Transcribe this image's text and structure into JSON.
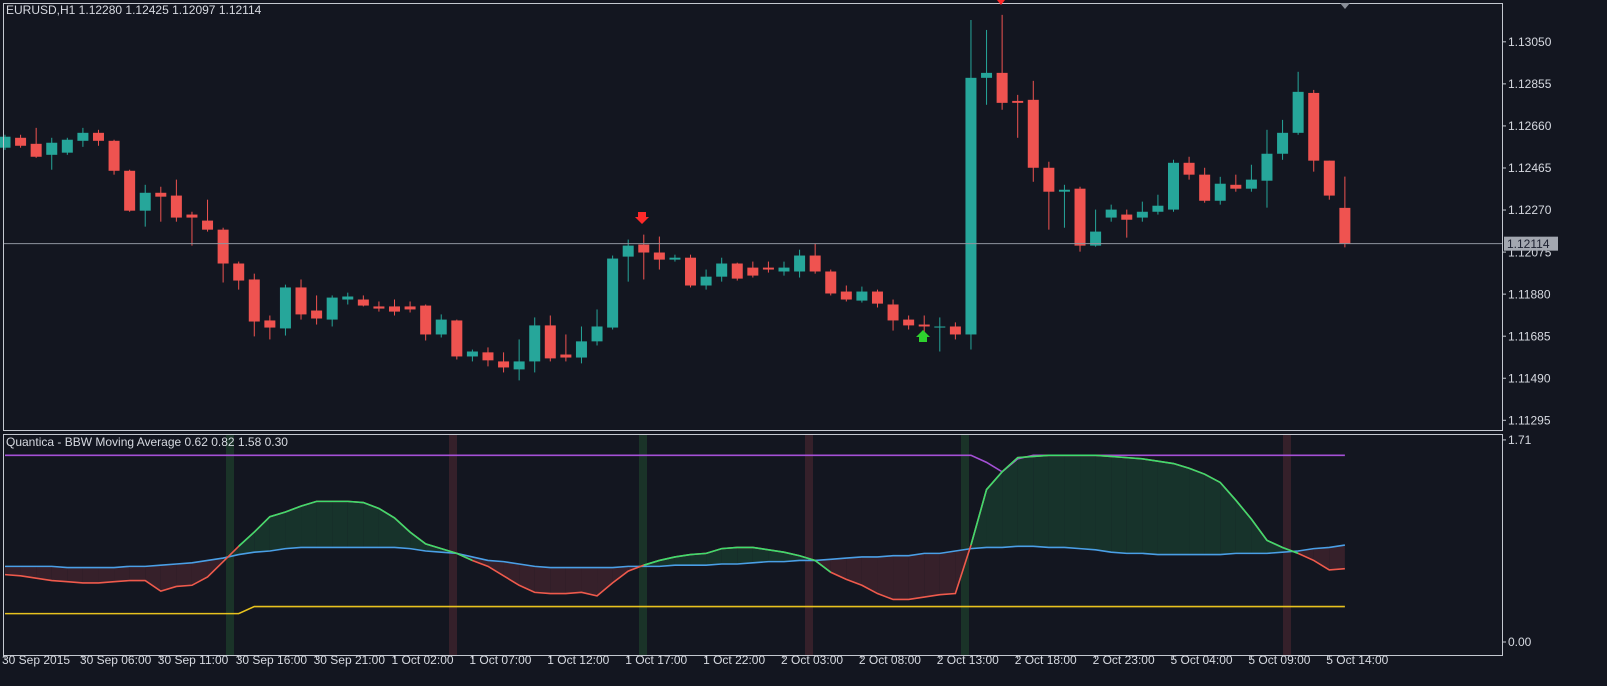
{
  "chart_data": [
    {
      "type": "candlestick",
      "title": "EURUSD,H1  1.12280 1.12425 1.12097 1.12114",
      "categories": [
        "30 Sep 2015",
        null,
        null,
        null,
        null,
        "30 Sep 06:00",
        null,
        null,
        null,
        null,
        "30 Sep 11:00",
        null,
        null,
        null,
        null,
        "30 Sep 16:00",
        null,
        null,
        null,
        null,
        "30 Sep 21:00",
        null,
        null,
        null,
        null,
        "1 Oct 02:00",
        null,
        null,
        null,
        null,
        "1 Oct 07:00",
        null,
        null,
        null,
        null,
        "1 Oct 12:00",
        null,
        null,
        null,
        null,
        "1 Oct 17:00",
        null,
        null,
        null,
        null,
        "1 Oct 22:00",
        null,
        null,
        null,
        null,
        "2 Oct 03:00",
        null,
        null,
        null,
        null,
        "2 Oct 08:00",
        null,
        null,
        null,
        null,
        "2 Oct 13:00",
        null,
        null,
        null,
        null,
        "2 Oct 18:00",
        null,
        null,
        null,
        null,
        "2 Oct 23:00",
        null,
        null,
        null,
        null,
        "5 Oct 04:00",
        null,
        null,
        null,
        null,
        "5 Oct 09:00",
        null,
        null,
        null,
        null,
        "5 Oct 14:00",
        null
      ],
      "open": [
        1.12559,
        1.12605,
        1.12577,
        1.12526,
        1.12536,
        1.12591,
        1.12628,
        1.12591,
        1.12452,
        1.12267,
        1.1235,
        1.12337,
        1.12249,
        1.12221,
        1.12179,
        1.12022,
        1.11948,
        1.11758,
        1.11721,
        1.11911,
        1.11804,
        1.11762,
        1.11855,
        1.11855,
        1.11823,
        1.11823,
        1.11823,
        1.11827,
        1.11693,
        1.11758,
        1.11591,
        1.1161,
        1.11568,
        1.11531,
        1.11568,
        1.11735,
        1.116,
        1.11586,
        1.11661,
        1.11725,
        1.12054,
        1.1211,
        1.12073,
        1.1204,
        1.12049,
        1.1192,
        1.11961,
        1.12022,
        1.12003,
        1.12003,
        1.11985,
        1.11985,
        1.12059,
        1.11985,
        1.11892,
        1.1185,
        1.11892,
        1.11832,
        1.11762,
        1.11739,
        1.11725,
        1.1173,
        1.11693,
        1.12883,
        1.12906,
        1.12776,
        1.12781,
        1.12466,
        1.12355,
        1.12369,
        1.12105,
        1.12235,
        1.12249,
        1.12235,
        1.12262,
        1.12272,
        1.12489,
        1.12434,
        1.12313,
        1.12387,
        1.12369,
        1.12406,
        1.12531,
        1.12628,
        1.12813,
        1.12499,
        1.1228
      ],
      "high": [
        1.12619,
        1.12619,
        1.12651,
        1.12605,
        1.12605,
        1.12651,
        1.12642,
        1.12596,
        1.12457,
        1.12387,
        1.12378,
        1.12411,
        1.12262,
        1.12318,
        1.12188,
        1.12031,
        1.11975,
        1.11781,
        1.11924,
        1.11948,
        1.11874,
        1.11874,
        1.11887,
        1.11874,
        1.11846,
        1.11855,
        1.11846,
        1.11832,
        1.11786,
        1.11762,
        1.11623,
        1.11633,
        1.1161,
        1.1167,
        1.11772,
        1.11781,
        1.11693,
        1.1173,
        1.11809,
        1.12059,
        1.12133,
        1.12156,
        1.12147,
        1.12063,
        1.12063,
        1.11994,
        1.12049,
        1.12026,
        1.12031,
        1.12031,
        1.12031,
        1.12086,
        1.12114,
        1.11994,
        1.1192,
        1.11915,
        1.11901,
        1.11855,
        1.11781,
        1.11781,
        1.11772,
        1.11749,
        1.13151,
        1.13105,
        1.13175,
        1.12804,
        1.12869,
        1.12494,
        1.12387,
        1.12378,
        1.12272,
        1.12295,
        1.12272,
        1.12309,
        1.12341,
        1.12503,
        1.12517,
        1.12466,
        1.12424,
        1.12434,
        1.1248,
        1.12642,
        1.12688,
        1.12911,
        1.12827,
        1.12499,
        1.12425
      ],
      "low": [
        1.12549,
        1.12559,
        1.12512,
        1.12457,
        1.12526,
        1.12563,
        1.12568,
        1.12434,
        1.12262,
        1.12193,
        1.12216,
        1.12216,
        1.12105,
        1.1217,
        1.11934,
        1.11901,
        1.11684,
        1.1167,
        1.11688,
        1.11762,
        1.11739,
        1.1173,
        1.11832,
        1.11823,
        1.11799,
        1.11781,
        1.11795,
        1.11665,
        1.11679,
        1.11577,
        1.11568,
        1.11545,
        1.11517,
        1.1148,
        1.11517,
        1.11568,
        1.11568,
        1.11559,
        1.11642,
        1.11716,
        1.11938,
        1.11948,
        1.11994,
        1.12031,
        1.11911,
        1.11901,
        1.11938,
        1.11943,
        1.11957,
        1.1198,
        1.11966,
        1.11957,
        1.11975,
        1.11874,
        1.11846,
        1.11841,
        1.11818,
        1.11711,
        1.11716,
        1.1167,
        1.11614,
        1.1167,
        1.11623,
        1.12758,
        1.12735,
        1.12605,
        1.12401,
        1.12179,
        1.12188,
        1.12077,
        1.121,
        1.12216,
        1.12142,
        1.12216,
        1.12249,
        1.12262,
        1.12411,
        1.12304,
        1.12295,
        1.12355,
        1.12355,
        1.12281,
        1.12503,
        1.12619,
        1.12448,
        1.12318,
        1.12097
      ],
      "close": [
        1.1261,
        1.12568,
        1.12517,
        1.12582,
        1.12596,
        1.12628,
        1.12591,
        1.12452,
        1.12267,
        1.1235,
        1.12332,
        1.12235,
        1.12235,
        1.12179,
        1.12022,
        1.11943,
        1.11753,
        1.11725,
        1.11911,
        1.11786,
        1.11767,
        1.11864,
        1.11869,
        1.11827,
        1.11813,
        1.11799,
        1.11809,
        1.11693,
        1.11762,
        1.11591,
        1.11614,
        1.11573,
        1.1154,
        1.11568,
        1.11735,
        1.11582,
        1.11586,
        1.11661,
        1.1173,
        1.12045,
        1.12105,
        1.12073,
        1.1204,
        1.12049,
        1.1192,
        1.11961,
        1.12022,
        1.11952,
        1.11966,
        1.11994,
        1.12003,
        1.12059,
        1.11985,
        1.11883,
        1.11855,
        1.11892,
        1.11836,
        1.11758,
        1.11735,
        1.1173,
        1.1173,
        1.11693,
        1.12883,
        1.12906,
        1.12767,
        1.12767,
        1.12466,
        1.12355,
        1.12364,
        1.12105,
        1.1217,
        1.12272,
        1.12225,
        1.12262,
        1.1229,
        1.12489,
        1.12434,
        1.12313,
        1.12392,
        1.12369,
        1.12411,
        1.12531,
        1.12628,
        1.12818,
        1.12499,
        1.12337,
        1.12114
      ],
      "up_color": "#26a69a",
      "down_color": "#ef5350",
      "ylim": [
        1.1125,
        1.1323
      ],
      "yticks": [
        {
          "value": 1.1305,
          "label": "1.13050"
        },
        1.12855,
        {
          "value": 1.1266,
          "label": "1.12660"
        },
        1.12465,
        {
          "value": 1.1227,
          "label": "1.12270"
        },
        1.12075,
        {
          "value": 1.1188,
          "label": "1.11880"
        },
        1.11685,
        {
          "value": 1.1149,
          "label": "1.11490"
        },
        1.11295
      ],
      "last_price": 1.12114
    },
    {
      "type": "line",
      "title": "Quantica - BBW Moving Average 0.62 0.82 1.58 0.30",
      "series": [
        {
          "color": "#ef5a4c",
          "up_color": "#3ddc6e",
          "values": [
            0.57,
            0.56,
            0.54,
            0.52,
            0.51,
            0.5,
            0.5,
            0.51,
            0.52,
            0.52,
            0.43,
            0.47,
            0.48,
            0.55,
            0.68,
            0.81,
            0.93,
            1.06,
            1.1,
            1.15,
            1.19,
            1.19,
            1.19,
            1.18,
            1.13,
            1.05,
            0.93,
            0.83,
            0.79,
            0.75,
            0.69,
            0.64,
            0.56,
            0.48,
            0.42,
            0.41,
            0.41,
            0.42,
            0.39,
            0.5,
            0.6,
            0.65,
            0.69,
            0.72,
            0.74,
            0.75,
            0.79,
            0.8,
            0.8,
            0.78,
            0.76,
            0.73,
            0.69,
            0.59,
            0.53,
            0.48,
            0.41,
            0.36,
            0.36,
            0.38,
            0.4,
            0.41,
            0.82,
            1.29,
            1.44,
            1.56,
            1.57,
            1.58,
            1.58,
            1.58,
            1.58,
            1.57,
            1.56,
            1.55,
            1.53,
            1.51,
            1.47,
            1.42,
            1.35,
            1.2,
            1.04,
            0.86,
            0.8,
            0.75,
            0.69,
            0.61,
            0.62
          ]
        },
        {
          "color": "#4a9fe6",
          "values": [
            0.64,
            0.64,
            0.64,
            0.64,
            0.63,
            0.63,
            0.63,
            0.63,
            0.64,
            0.64,
            0.65,
            0.66,
            0.67,
            0.69,
            0.71,
            0.74,
            0.76,
            0.77,
            0.79,
            0.8,
            0.8,
            0.8,
            0.8,
            0.8,
            0.8,
            0.8,
            0.79,
            0.77,
            0.76,
            0.75,
            0.72,
            0.69,
            0.68,
            0.66,
            0.64,
            0.63,
            0.63,
            0.63,
            0.63,
            0.63,
            0.64,
            0.64,
            0.64,
            0.65,
            0.65,
            0.65,
            0.66,
            0.66,
            0.67,
            0.68,
            0.68,
            0.69,
            0.69,
            0.7,
            0.71,
            0.72,
            0.72,
            0.73,
            0.73,
            0.75,
            0.75,
            0.77,
            0.79,
            0.8,
            0.8,
            0.81,
            0.81,
            0.8,
            0.8,
            0.79,
            0.78,
            0.76,
            0.75,
            0.75,
            0.74,
            0.74,
            0.74,
            0.74,
            0.74,
            0.75,
            0.75,
            0.75,
            0.76,
            0.77,
            0.79,
            0.8,
            0.82
          ]
        },
        {
          "color": "#a550d6",
          "values": [
            1.58,
            1.58,
            1.58,
            1.58,
            1.58,
            1.58,
            1.58,
            1.58,
            1.58,
            1.58,
            1.58,
            1.58,
            1.58,
            1.58,
            1.58,
            1.58,
            1.58,
            1.58,
            1.58,
            1.58,
            1.58,
            1.58,
            1.58,
            1.58,
            1.58,
            1.58,
            1.58,
            1.58,
            1.58,
            1.58,
            1.58,
            1.58,
            1.58,
            1.58,
            1.58,
            1.58,
            1.58,
            1.58,
            1.58,
            1.58,
            1.58,
            1.58,
            1.58,
            1.58,
            1.58,
            1.58,
            1.58,
            1.58,
            1.58,
            1.58,
            1.58,
            1.58,
            1.58,
            1.58,
            1.58,
            1.58,
            1.58,
            1.58,
            1.58,
            1.58,
            1.58,
            1.58,
            1.58,
            1.52,
            1.44,
            1.55,
            1.58,
            1.58,
            1.58,
            1.58,
            1.58,
            1.58,
            1.58,
            1.58,
            1.58,
            1.58,
            1.58,
            1.58,
            1.58,
            1.58,
            1.58,
            1.58,
            1.58,
            1.58,
            1.58,
            1.58,
            1.58
          ]
        },
        {
          "color": "#e8c21e",
          "values": [
            0.24,
            0.24,
            0.24,
            0.24,
            0.24,
            0.24,
            0.24,
            0.24,
            0.24,
            0.24,
            0.24,
            0.24,
            0.24,
            0.24,
            0.24,
            0.24,
            0.3,
            0.3,
            0.3,
            0.3,
            0.3,
            0.3,
            0.3,
            0.3,
            0.3,
            0.3,
            0.3,
            0.3,
            0.3,
            0.3,
            0.3,
            0.3,
            0.3,
            0.3,
            0.3,
            0.3,
            0.3,
            0.3,
            0.3,
            0.3,
            0.3,
            0.3,
            0.3,
            0.3,
            0.3,
            0.3,
            0.3,
            0.3,
            0.3,
            0.3,
            0.3,
            0.3,
            0.3,
            0.3,
            0.3,
            0.3,
            0.3,
            0.3,
            0.3,
            0.3,
            0.3,
            0.3,
            0.3,
            0.3,
            0.3,
            0.3,
            0.3,
            0.3,
            0.3,
            0.3,
            0.3,
            0.3,
            0.3,
            0.3,
            0.3,
            0.3,
            0.3,
            0.3,
            0.3,
            0.3,
            0.3,
            0.3,
            0.3,
            0.3,
            0.3,
            0.3,
            0.3
          ]
        }
      ],
      "fill_colors": [
        "#17332b",
        "#36202a"
      ],
      "ylim": [
        -0.11,
        1.76
      ],
      "yticks": [
        1.71,
        {
          "value": 0,
          "label": "0.00"
        }
      ]
    }
  ]
}
